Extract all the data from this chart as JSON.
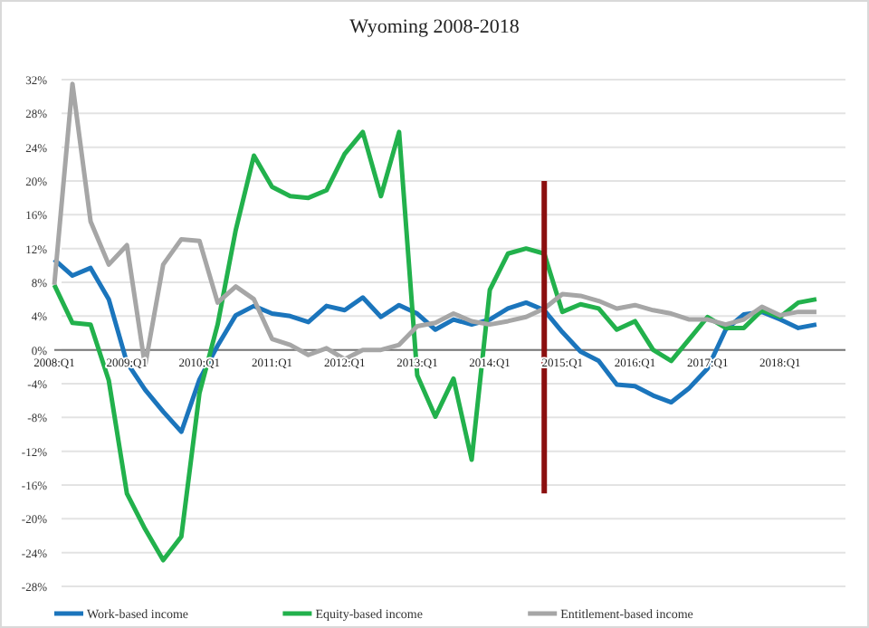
{
  "chart_data": {
    "type": "line",
    "title": "Wyoming 2008-2018",
    "categories": [
      "2008:Q1",
      null,
      null,
      null,
      "2009:Q1",
      null,
      null,
      null,
      "2010:Q1",
      null,
      null,
      null,
      "2011:Q1",
      null,
      null,
      null,
      "2012:Q1",
      null,
      null,
      null,
      "2013:Q1",
      null,
      null,
      null,
      "2014:Q1",
      null,
      null,
      null,
      "2015:Q1",
      null,
      null,
      null,
      "2016:Q1",
      null,
      null,
      null,
      "2017:Q1",
      null,
      null,
      null,
      "2018:Q1",
      null,
      null
    ],
    "series": [
      {
        "name": "Work-based income",
        "color": "#1b75bc",
        "values": [
          10.7,
          8.8,
          9.7,
          6,
          -1.5,
          -4.7,
          -7.3,
          -9.7,
          -3.5,
          0.5,
          4.1,
          5.2,
          4.3,
          4,
          3.3,
          5.2,
          4.7,
          6.2,
          3.9,
          5.3,
          4.3,
          2.4,
          3.6,
          3,
          3.6,
          4.9,
          5.6,
          4.7,
          2.1,
          -0.2,
          -1.3,
          -4.1,
          -4.3,
          -5.4,
          -6.2,
          -4.5,
          -2.2,
          2.4,
          4.2,
          4.5,
          3.6,
          2.6,
          3
        ]
      },
      {
        "name": "Equity-based income",
        "color": "#22b14c",
        "values": [
          7.7,
          3.2,
          3,
          -3.6,
          -17,
          -21.2,
          -24.9,
          -22.1,
          -5.1,
          3,
          14.2,
          23,
          19.3,
          18.2,
          18,
          18.9,
          23.2,
          25.8,
          18.2,
          25.8,
          -3,
          -7.9,
          -3.4,
          -13,
          7.1,
          11.4,
          12,
          11.4,
          4.5,
          5.4,
          4.9,
          2.4,
          3.4,
          0,
          -1.3,
          1.3,
          3.9,
          2.6,
          2.6,
          4.7,
          3.9,
          5.6,
          6
        ]
      },
      {
        "name": "Entitlement-based income",
        "color": "#a6a6a6",
        "values": [
          7.7,
          31.5,
          15.2,
          10.1,
          12.4,
          -1.9,
          10.1,
          13.1,
          12.9,
          5.6,
          7.5,
          6,
          1.3,
          0.6,
          -0.6,
          0.2,
          -1.1,
          0,
          0,
          0.6,
          2.8,
          3.2,
          4.3,
          3.4,
          3,
          3.4,
          3.9,
          4.9,
          6.6,
          6.4,
          5.8,
          4.9,
          5.3,
          4.7,
          4.3,
          3.6,
          3.6,
          3,
          3.6,
          5.1,
          4.1,
          4.5,
          4.5
        ]
      }
    ],
    "ylim": [
      -28,
      32
    ],
    "yticks": [
      {
        "value": -28,
        "label": "-28%"
      },
      {
        "value": -24,
        "label": "-24%"
      },
      {
        "value": -20,
        "label": "-20%"
      },
      {
        "value": -16,
        "label": "-16%"
      },
      {
        "value": -12,
        "label": "-12%"
      },
      {
        "value": -8,
        "label": "-8%"
      },
      {
        "value": -4,
        "label": "-4%"
      },
      {
        "value": 0,
        "label": "0%"
      },
      {
        "value": 4,
        "label": "4%"
      },
      {
        "value": 8,
        "label": "8%"
      },
      {
        "value": 12,
        "label": "12%"
      },
      {
        "value": 16,
        "label": "16%"
      },
      {
        "value": 20,
        "label": "20%"
      },
      {
        "value": 24,
        "label": "24%"
      },
      {
        "value": 28,
        "label": "28%"
      },
      {
        "value": 32,
        "label": "32%"
      }
    ],
    "grid": "y",
    "legend": "bottom",
    "marker": "none",
    "line_style": "solid"
  }
}
